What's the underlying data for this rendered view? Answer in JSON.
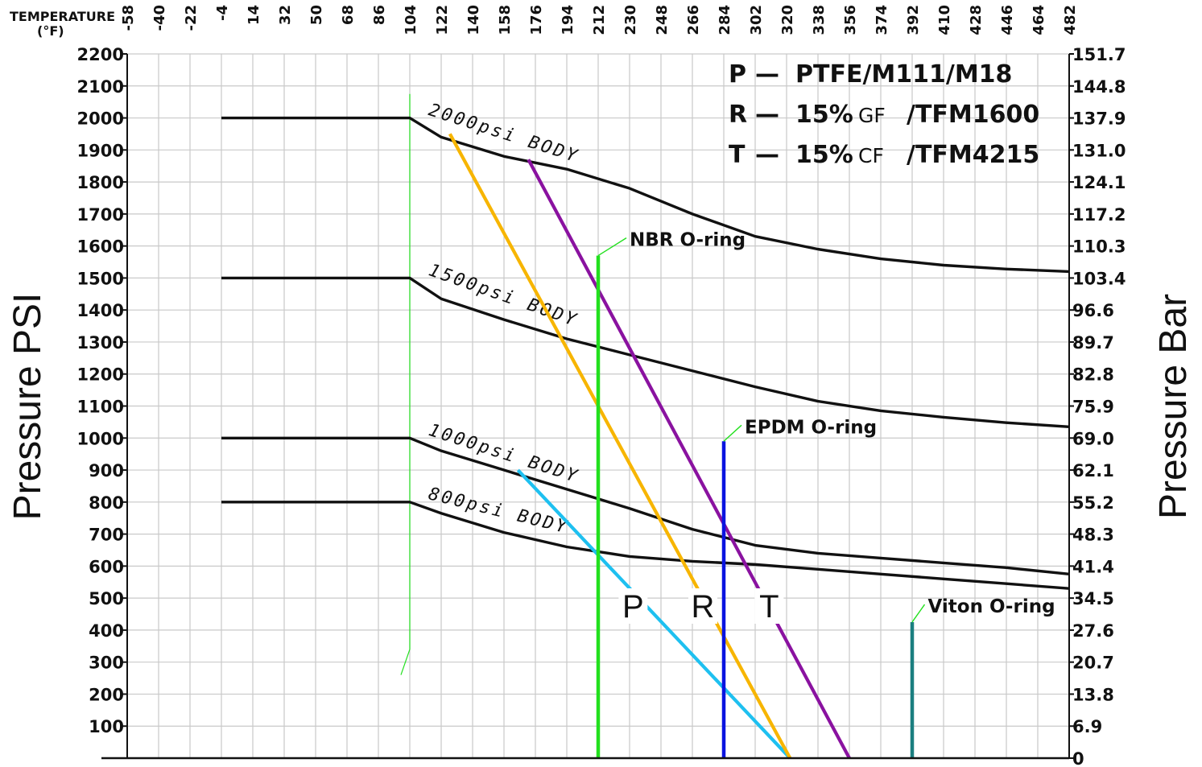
{
  "chart_data": {
    "type": "line",
    "x_axis": {
      "title": "TEMPERATURE",
      "unit": "(°F)",
      "ticks": [
        -58,
        -40,
        -22,
        -4,
        14,
        32,
        50,
        68,
        86,
        104,
        122,
        140,
        158,
        176,
        194,
        212,
        230,
        248,
        266,
        284,
        302,
        320,
        338,
        356,
        374,
        392,
        410,
        428,
        446,
        464,
        482
      ],
      "xlim": [
        -58,
        482
      ]
    },
    "y_axis_left": {
      "title": "Pressure PSI",
      "ticks": [
        100,
        200,
        300,
        400,
        500,
        600,
        700,
        800,
        900,
        1000,
        1100,
        1200,
        1300,
        1400,
        1500,
        1600,
        1700,
        1800,
        1900,
        2000,
        2100,
        2200
      ],
      "ylim": [
        0,
        2200
      ]
    },
    "y_axis_right": {
      "title": "Pressure Bar",
      "ticks": [
        "0",
        "6.9",
        "13.8",
        "20.7",
        "27.6",
        "34.5",
        "41.4",
        "48.3",
        "55.2",
        "62.1",
        "69.0",
        "75.9",
        "82.8",
        "89.7",
        "96.6",
        "103.4",
        "110.3",
        "117.2",
        "124.1",
        "131.0",
        "137.9",
        "144.8",
        "151.7"
      ]
    },
    "grid": true,
    "legend": {
      "position": "top-right",
      "entries": [
        {
          "key": "P",
          "dash": "—",
          "main": "PTFE/M111/M18",
          "small": "",
          "suffix": ""
        },
        {
          "key": "R",
          "dash": "—",
          "main": "15%",
          "small": "GF",
          "suffix": "/TFM1600"
        },
        {
          "key": "T",
          "dash": "—",
          "main": "15%",
          "small": "CF",
          "suffix": "/TFM4215"
        }
      ]
    },
    "body_curves": [
      {
        "label": "2000psi BODY",
        "color": "#111111",
        "points": [
          [
            -4,
            2000
          ],
          [
            104,
            2000
          ],
          [
            122,
            1940
          ],
          [
            158,
            1880
          ],
          [
            194,
            1840
          ],
          [
            230,
            1780
          ],
          [
            266,
            1700
          ],
          [
            302,
            1630
          ],
          [
            338,
            1590
          ],
          [
            374,
            1560
          ],
          [
            410,
            1540
          ],
          [
            446,
            1528
          ],
          [
            482,
            1520
          ]
        ]
      },
      {
        "label": "1500psi BODY",
        "color": "#111111",
        "points": [
          [
            -4,
            1500
          ],
          [
            104,
            1500
          ],
          [
            122,
            1435
          ],
          [
            158,
            1370
          ],
          [
            194,
            1310
          ],
          [
            230,
            1260
          ],
          [
            266,
            1210
          ],
          [
            302,
            1160
          ],
          [
            338,
            1115
          ],
          [
            374,
            1085
          ],
          [
            410,
            1065
          ],
          [
            446,
            1048
          ],
          [
            482,
            1035
          ]
        ]
      },
      {
        "label": "1000psi BODY",
        "color": "#111111",
        "points": [
          [
            -4,
            1000
          ],
          [
            104,
            1000
          ],
          [
            122,
            960
          ],
          [
            158,
            900
          ],
          [
            194,
            840
          ],
          [
            230,
            780
          ],
          [
            266,
            715
          ],
          [
            302,
            665
          ],
          [
            338,
            640
          ],
          [
            374,
            625
          ],
          [
            410,
            610
          ],
          [
            446,
            595
          ],
          [
            482,
            575
          ]
        ]
      },
      {
        "label": "800psi BODY",
        "color": "#111111",
        "points": [
          [
            -4,
            800
          ],
          [
            104,
            800
          ],
          [
            122,
            765
          ],
          [
            158,
            705
          ],
          [
            194,
            660
          ],
          [
            230,
            630
          ],
          [
            266,
            615
          ],
          [
            302,
            605
          ],
          [
            338,
            590
          ],
          [
            374,
            575
          ],
          [
            410,
            560
          ],
          [
            446,
            545
          ],
          [
            482,
            530
          ]
        ]
      }
    ],
    "material_lines": [
      {
        "name": "P",
        "color": "#1ec0f0",
        "points": [
          [
            166,
            900
          ],
          [
            322,
            0
          ]
        ],
        "label_at": [
          232,
          440
        ]
      },
      {
        "name": "R",
        "color": "#f7b500",
        "points": [
          [
            127,
            1950
          ],
          [
            322,
            0
          ]
        ],
        "label_at": [
          272,
          440
        ]
      },
      {
        "name": "T",
        "color": "#8a12a0",
        "points": [
          [
            172,
            1870
          ],
          [
            356,
            0
          ]
        ],
        "label_at": [
          310,
          440
        ]
      }
    ],
    "orings": [
      {
        "label": "NBR O-ring",
        "color": "#22e01e",
        "temp": 212,
        "max_psi": 1570,
        "label_at": [
          230,
          1600
        ]
      },
      {
        "label": "EPDM O-ring",
        "color": "#0a14e0",
        "temp": 284,
        "max_psi": 990,
        "label_at": [
          296,
          1015
        ]
      },
      {
        "label": "Viton O-ring",
        "color": "#1b7f80",
        "temp": 392,
        "max_psi": 425,
        "label_at": [
          401,
          455
        ]
      }
    ],
    "reference_line": {
      "color": "#22e01e",
      "temp": 104,
      "from_psi": 260,
      "to_psi": 2075
    }
  }
}
